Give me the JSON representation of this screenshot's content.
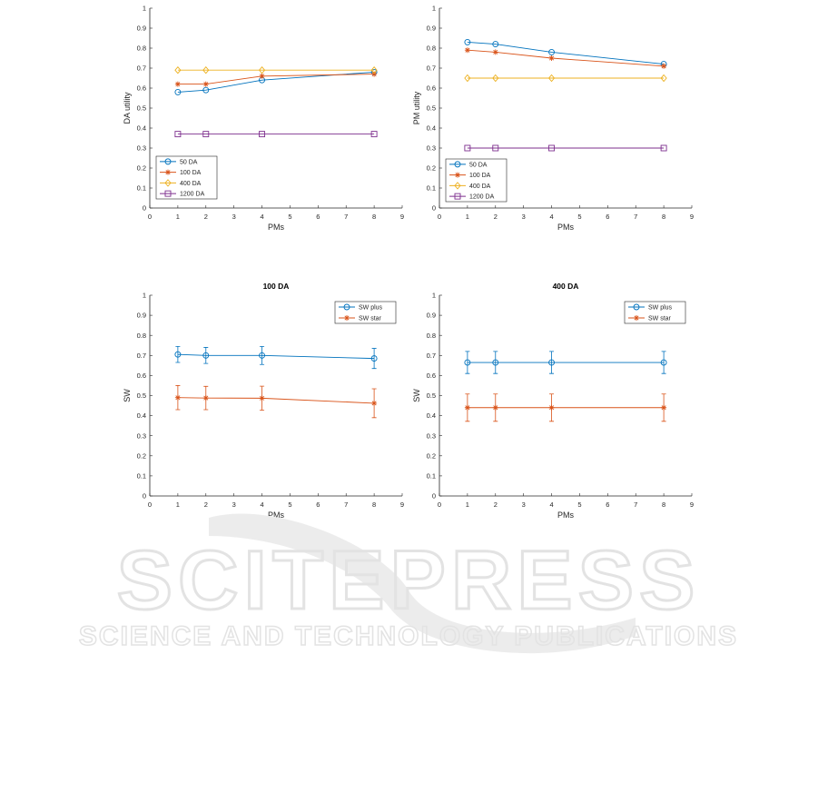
{
  "colors": {
    "series": [
      "#0072BD",
      "#D95319",
      "#EDB120",
      "#7E2F8E"
    ],
    "axis": "#262626",
    "watermark": "#ececec",
    "watermark_text": "#e3e3e3"
  },
  "watermark": {
    "title": "SCITEPRESS",
    "subtitle": "SCIENCE AND TECHNOLOGY PUBLICATIONS"
  },
  "chart_data": [
    {
      "type": "line",
      "title": "",
      "xlabel": "PMs",
      "ylabel": "DA utility",
      "xlim": [
        0,
        9
      ],
      "ylim": [
        0,
        1
      ],
      "xticks": [
        "0",
        "1",
        "2",
        "3",
        "4",
        "5",
        "6",
        "7",
        "8",
        "9"
      ],
      "yticks": [
        "0",
        "0.1",
        "0.2",
        "0.3",
        "0.4",
        "0.5",
        "0.6",
        "0.7",
        "0.8",
        "0.9",
        "1"
      ],
      "x": [
        1,
        2,
        4,
        8
      ],
      "legend_position": "bottom-left",
      "series": [
        {
          "name": "50 DA",
          "marker": "circle",
          "values": [
            0.58,
            0.59,
            0.64,
            0.68
          ]
        },
        {
          "name": "100 DA",
          "marker": "star",
          "values": [
            0.62,
            0.62,
            0.66,
            0.67
          ]
        },
        {
          "name": "400 DA",
          "marker": "diamond",
          "values": [
            0.69,
            0.69,
            0.69,
            0.69
          ]
        },
        {
          "name": "1200 DA",
          "marker": "square",
          "values": [
            0.37,
            0.37,
            0.37,
            0.37
          ]
        }
      ]
    },
    {
      "type": "line",
      "title": "",
      "xlabel": "PMs",
      "ylabel": "PM utility",
      "xlim": [
        0,
        9
      ],
      "ylim": [
        0,
        1
      ],
      "xticks": [
        "0",
        "1",
        "2",
        "3",
        "4",
        "5",
        "6",
        "7",
        "8",
        "9"
      ],
      "yticks": [
        "0",
        "0.1",
        "0.2",
        "0.3",
        "0.4",
        "0.5",
        "0.6",
        "0.7",
        "0.8",
        "0.9",
        "1"
      ],
      "x": [
        1,
        2,
        4,
        8
      ],
      "legend_position": "bottom-left",
      "series": [
        {
          "name": "50 DA",
          "marker": "circle",
          "values": [
            0.83,
            0.82,
            0.78,
            0.72
          ]
        },
        {
          "name": "100 DA",
          "marker": "star",
          "values": [
            0.79,
            0.78,
            0.75,
            0.71
          ]
        },
        {
          "name": "400 DA",
          "marker": "diamond",
          "values": [
            0.65,
            0.65,
            0.65,
            0.65
          ]
        },
        {
          "name": "1200 DA",
          "marker": "square",
          "values": [
            0.3,
            0.3,
            0.3,
            0.3
          ]
        }
      ]
    },
    {
      "type": "line",
      "title": "100 DA",
      "xlabel": "PMs",
      "ylabel": "SW",
      "xlim": [
        0,
        9
      ],
      "ylim": [
        0,
        1
      ],
      "xticks": [
        "0",
        "1",
        "2",
        "3",
        "4",
        "5",
        "6",
        "7",
        "8",
        "9"
      ],
      "yticks": [
        "0",
        "0.1",
        "0.2",
        "0.3",
        "0.4",
        "0.5",
        "0.6",
        "0.7",
        "0.8",
        "0.9",
        "1"
      ],
      "x": [
        1,
        2,
        4,
        8
      ],
      "legend_position": "top-right",
      "error_bars": true,
      "series": [
        {
          "name": "SW plus",
          "marker": "circle",
          "values": [
            0.705,
            0.7,
            0.7,
            0.685
          ],
          "errors": [
            0.04,
            0.04,
            0.045,
            0.05
          ]
        },
        {
          "name": "SW star",
          "marker": "star",
          "values": [
            0.49,
            0.488,
            0.487,
            0.462
          ],
          "errors": [
            0.06,
            0.058,
            0.06,
            0.072
          ]
        }
      ]
    },
    {
      "type": "line",
      "title": "400 DA",
      "xlabel": "PMs",
      "ylabel": "SW",
      "xlim": [
        0,
        9
      ],
      "ylim": [
        0,
        1
      ],
      "xticks": [
        "0",
        "1",
        "2",
        "3",
        "4",
        "5",
        "6",
        "7",
        "8",
        "9"
      ],
      "yticks": [
        "0",
        "0.1",
        "0.2",
        "0.3",
        "0.4",
        "0.5",
        "0.6",
        "0.7",
        "0.8",
        "0.9",
        "1"
      ],
      "x": [
        1,
        2,
        4,
        8
      ],
      "legend_position": "top-right",
      "error_bars": true,
      "series": [
        {
          "name": "SW plus",
          "marker": "circle",
          "values": [
            0.665,
            0.665,
            0.665,
            0.665
          ],
          "errors": [
            0.055,
            0.055,
            0.055,
            0.055
          ]
        },
        {
          "name": "SW star",
          "marker": "star",
          "values": [
            0.44,
            0.44,
            0.44,
            0.44
          ],
          "errors": [
            0.068,
            0.068,
            0.068,
            0.068
          ]
        }
      ]
    }
  ]
}
